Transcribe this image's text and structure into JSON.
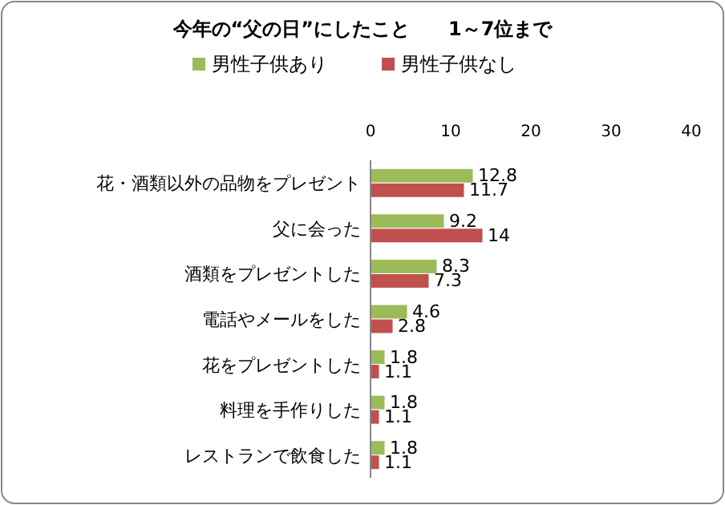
{
  "chart_data": {
    "type": "bar",
    "orientation": "horizontal",
    "title": "今年の“父の日”にしたこと　　1～7位まで",
    "categories": [
      "花・酒類以外の品物をプレゼント",
      "父に会った",
      "酒類をプレゼントした",
      "電話やメールをした",
      "花をプレゼントした",
      "料理を手作りした",
      "レストランで飲食した"
    ],
    "series": [
      {
        "name": "男性子供あり",
        "color": "#9bbb59",
        "values": [
          12.8,
          9.2,
          8.3,
          4.6,
          1.8,
          1.8,
          1.8
        ]
      },
      {
        "name": "男性子供なし",
        "color": "#c0504d",
        "values": [
          11.7,
          14,
          7.3,
          2.8,
          1.1,
          1.1,
          1.1
        ]
      }
    ],
    "xlim": [
      0,
      40
    ],
    "xticks": [
      0,
      10,
      20,
      30,
      40
    ],
    "data_labels": true,
    "legend": "top",
    "grid": false
  }
}
